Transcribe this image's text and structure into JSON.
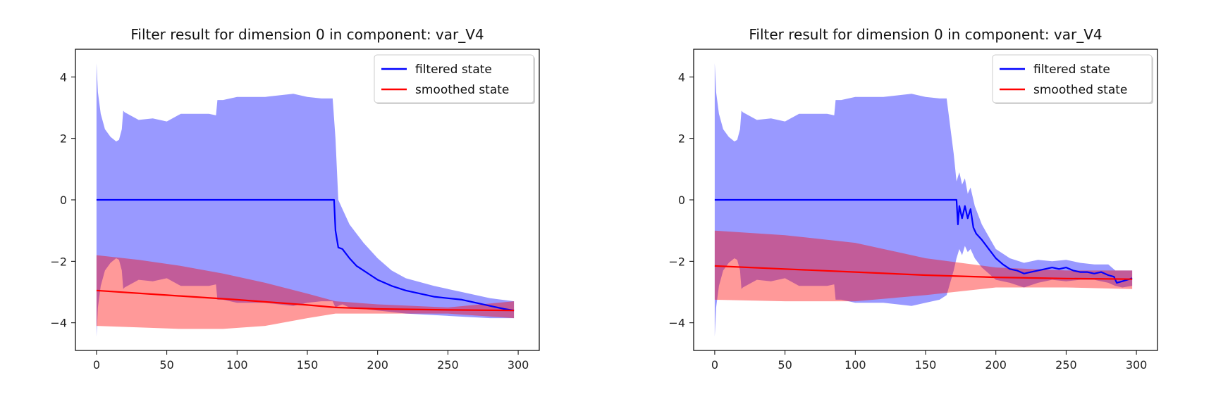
{
  "chart_data": [
    {
      "type": "line",
      "title": "Filter result for dimension 0 in component: var_V4",
      "xlabel": "",
      "ylabel": "",
      "xlim": [
        -15,
        315
      ],
      "ylim": [
        -4.9,
        4.9
      ],
      "xticks": [
        0,
        50,
        100,
        150,
        200,
        250,
        300
      ],
      "yticks": [
        4,
        2,
        0,
        -2,
        -4
      ],
      "xtick_labels": [
        "0",
        "50",
        "100",
        "150",
        "200",
        "250",
        "300"
      ],
      "ytick_labels": [
        "4",
        "2",
        "0",
        "−2",
        "−4"
      ],
      "grid": false,
      "legend_position": "top-right",
      "series": [
        {
          "name": "filtered state",
          "color": "#0000ff",
          "x": [
            0,
            169,
            170,
            172,
            175,
            180,
            185,
            190,
            195,
            200,
            210,
            220,
            230,
            240,
            250,
            260,
            270,
            280,
            290,
            297
          ],
          "y": [
            0,
            0,
            -1.0,
            -1.55,
            -1.6,
            -1.9,
            -2.15,
            -2.3,
            -2.45,
            -2.6,
            -2.8,
            -2.95,
            -3.05,
            -3.15,
            -3.2,
            -3.25,
            -3.35,
            -3.45,
            -3.55,
            -3.6
          ]
        },
        {
          "name": "smoothed state",
          "color": "#ff0000",
          "x": [
            0,
            50,
            100,
            150,
            170,
            200,
            250,
            297
          ],
          "y": [
            -2.95,
            -3.1,
            -3.25,
            -3.42,
            -3.5,
            -3.55,
            -3.58,
            -3.6
          ]
        }
      ],
      "bands": [
        {
          "for_series": "filtered state",
          "color": "#0000ff",
          "opacity": 0.4,
          "x": [
            0,
            1,
            3,
            6,
            10,
            14,
            16,
            18,
            19,
            20,
            24,
            30,
            40,
            50,
            60,
            70,
            80,
            85,
            86,
            90,
            100,
            120,
            140,
            150,
            160,
            165,
            168,
            170,
            172,
            175,
            180,
            190,
            200,
            210,
            220,
            240,
            260,
            280,
            297
          ],
          "upper": [
            4.45,
            3.5,
            2.8,
            2.3,
            2.05,
            1.9,
            1.95,
            2.3,
            2.9,
            2.85,
            2.75,
            2.6,
            2.65,
            2.55,
            2.8,
            2.8,
            2.8,
            2.75,
            3.25,
            3.25,
            3.35,
            3.35,
            3.45,
            3.35,
            3.3,
            3.3,
            3.3,
            2.0,
            0.0,
            -0.3,
            -0.8,
            -1.4,
            -1.9,
            -2.3,
            -2.55,
            -2.8,
            -3.0,
            -3.2,
            -3.3
          ],
          "lower": [
            -4.45,
            -3.5,
            -2.8,
            -2.3,
            -2.05,
            -1.9,
            -1.95,
            -2.3,
            -2.9,
            -2.85,
            -2.75,
            -2.6,
            -2.65,
            -2.55,
            -2.8,
            -2.8,
            -2.8,
            -2.75,
            -3.25,
            -3.25,
            -3.35,
            -3.35,
            -3.45,
            -3.35,
            -3.3,
            -3.3,
            -3.3,
            -3.5,
            -3.45,
            -3.4,
            -3.5,
            -3.55,
            -3.6,
            -3.65,
            -3.7,
            -3.75,
            -3.8,
            -3.85,
            -3.85
          ]
        },
        {
          "for_series": "smoothed state",
          "color": "#ff0000",
          "opacity": 0.4,
          "x": [
            0,
            30,
            60,
            90,
            120,
            150,
            170,
            200,
            250,
            297
          ],
          "upper": [
            -1.8,
            -1.95,
            -2.15,
            -2.4,
            -2.7,
            -3.05,
            -3.3,
            -3.4,
            -3.5,
            -3.3
          ],
          "lower": [
            -4.1,
            -4.15,
            -4.2,
            -4.2,
            -4.1,
            -3.85,
            -3.7,
            -3.7,
            -3.7,
            -3.85
          ]
        }
      ]
    },
    {
      "type": "line",
      "title": "Filter result for dimension 0 in component: var_V4",
      "xlabel": "",
      "ylabel": "",
      "xlim": [
        -15,
        315
      ],
      "ylim": [
        -4.9,
        4.9
      ],
      "xticks": [
        0,
        50,
        100,
        150,
        200,
        250,
        300
      ],
      "yticks": [
        4,
        2,
        0,
        -2,
        -4
      ],
      "xtick_labels": [
        "0",
        "50",
        "100",
        "150",
        "200",
        "250",
        "300"
      ],
      "ytick_labels": [
        "4",
        "2",
        "0",
        "−2",
        "−4"
      ],
      "grid": false,
      "legend_position": "top-right",
      "series": [
        {
          "name": "filtered state",
          "color": "#0000ff",
          "x": [
            0,
            172,
            173,
            174,
            175,
            176,
            178,
            180,
            182,
            184,
            186,
            188,
            190,
            195,
            200,
            205,
            210,
            215,
            220,
            225,
            230,
            235,
            240,
            245,
            250,
            255,
            260,
            265,
            270,
            275,
            280,
            284,
            286,
            290,
            297
          ],
          "y": [
            0,
            0,
            -0.8,
            -0.2,
            -0.4,
            -0.6,
            -0.2,
            -0.6,
            -0.3,
            -0.9,
            -1.1,
            -1.2,
            -1.3,
            -1.6,
            -1.9,
            -2.1,
            -2.25,
            -2.3,
            -2.4,
            -2.35,
            -2.3,
            -2.25,
            -2.2,
            -2.25,
            -2.2,
            -2.3,
            -2.35,
            -2.35,
            -2.4,
            -2.35,
            -2.45,
            -2.5,
            -2.7,
            -2.65,
            -2.55
          ]
        },
        {
          "name": "smoothed state",
          "color": "#ff0000",
          "x": [
            0,
            50,
            100,
            150,
            200,
            250,
            297
          ],
          "y": [
            -2.15,
            -2.25,
            -2.35,
            -2.45,
            -2.52,
            -2.56,
            -2.58
          ]
        }
      ],
      "bands": [
        {
          "for_series": "filtered state",
          "color": "#0000ff",
          "opacity": 0.4,
          "x": [
            0,
            1,
            3,
            6,
            10,
            14,
            16,
            18,
            19,
            20,
            24,
            30,
            40,
            50,
            60,
            70,
            80,
            85,
            86,
            90,
            100,
            120,
            140,
            150,
            160,
            165,
            170,
            172,
            174,
            176,
            178,
            180,
            182,
            185,
            190,
            195,
            200,
            210,
            220,
            230,
            240,
            250,
            260,
            270,
            280,
            285,
            290,
            297
          ],
          "upper": [
            4.45,
            3.5,
            2.8,
            2.3,
            2.05,
            1.9,
            1.95,
            2.3,
            2.9,
            2.85,
            2.75,
            2.6,
            2.65,
            2.55,
            2.8,
            2.8,
            2.8,
            2.75,
            3.25,
            3.25,
            3.35,
            3.35,
            3.45,
            3.35,
            3.3,
            3.3,
            1.5,
            0.6,
            0.9,
            0.5,
            0.7,
            0.2,
            0.4,
            -0.2,
            -0.8,
            -1.2,
            -1.6,
            -1.9,
            -2.05,
            -1.95,
            -2.0,
            -1.95,
            -2.05,
            -2.1,
            -2.1,
            -2.3,
            -2.3,
            -2.3
          ],
          "lower": [
            -4.45,
            -3.5,
            -2.8,
            -2.3,
            -2.05,
            -1.9,
            -1.95,
            -2.3,
            -2.9,
            -2.85,
            -2.75,
            -2.6,
            -2.65,
            -2.55,
            -2.8,
            -2.8,
            -2.8,
            -2.75,
            -3.25,
            -3.25,
            -3.35,
            -3.35,
            -3.45,
            -3.35,
            -3.25,
            -3.1,
            -2.3,
            -1.9,
            -1.6,
            -1.8,
            -1.5,
            -1.7,
            -1.6,
            -1.9,
            -2.2,
            -2.4,
            -2.6,
            -2.7,
            -2.85,
            -2.7,
            -2.6,
            -2.65,
            -2.6,
            -2.6,
            -2.7,
            -2.8,
            -2.85,
            -2.8
          ]
        },
        {
          "for_series": "smoothed state",
          "color": "#ff0000",
          "opacity": 0.4,
          "x": [
            0,
            50,
            100,
            150,
            200,
            250,
            297
          ],
          "upper": [
            -1.0,
            -1.15,
            -1.4,
            -1.9,
            -2.2,
            -2.3,
            -2.3
          ],
          "lower": [
            -3.25,
            -3.3,
            -3.3,
            -3.1,
            -2.85,
            -2.85,
            -2.9
          ]
        }
      ]
    }
  ]
}
